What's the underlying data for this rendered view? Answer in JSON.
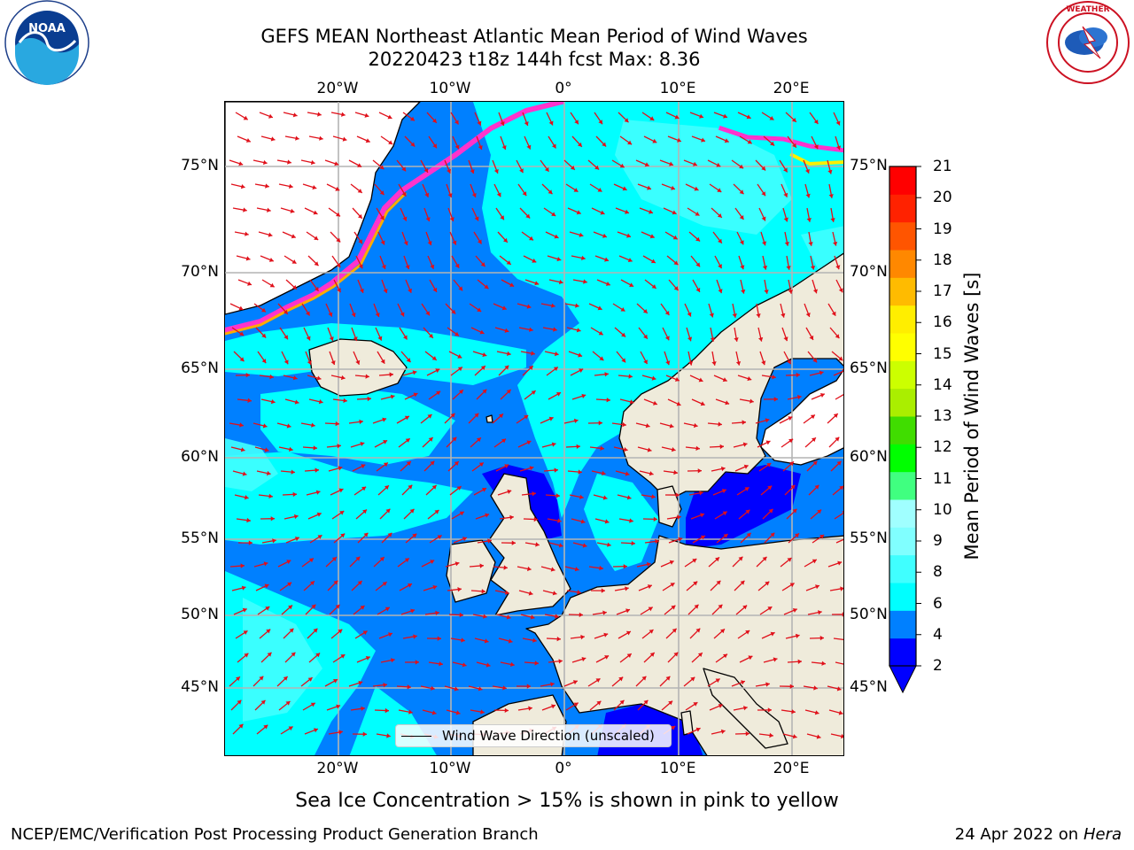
{
  "title": {
    "line1": "GEFS MEAN Northeast Atlantic Mean Period of Wind Waves",
    "line2": "20220423 t18z 144h fcst   Max: 8.36"
  },
  "logos": {
    "left": "NOAA",
    "right": "NATIONAL WEATHER SERVICE"
  },
  "map": {
    "lon_labels": [
      "20°W",
      "10°W",
      "0°",
      "10°E",
      "20°E"
    ],
    "lat_labels": [
      "75°N",
      "70°N",
      "65°N",
      "60°N",
      "55°N",
      "50°N",
      "45°N"
    ],
    "legend_label": "Wind Wave Direction (unscaled)",
    "colors": {
      "land": "#efebdb",
      "ice_region": "#ffffff",
      "ice_edge": [
        "#ff33cc",
        "#ffaa00",
        "#ffee00"
      ],
      "arrows": "#e0101a",
      "grid": "#b4b4b4",
      "coast": "#000000"
    }
  },
  "colorbar": {
    "label": "Mean Period of Wind Waves [s]",
    "ticks": [
      "21",
      "20",
      "19",
      "18",
      "17",
      "16",
      "15",
      "14",
      "13",
      "12",
      "11",
      "10",
      "9",
      "8",
      "6",
      "4",
      "2"
    ],
    "bands": [
      "#0000ff",
      "#0080ff",
      "#00ffff",
      "#40ffff",
      "#80ffff",
      "#a0ffff",
      "#40ff80",
      "#00ff00",
      "#40dd00",
      "#aaee00",
      "#ccff00",
      "#ffff00",
      "#ffee00",
      "#ffbb00",
      "#ff8800",
      "#ff5500",
      "#ff2200",
      "#ff0000"
    ]
  },
  "subtitle": "Sea Ice Concentration > 15% is shown in pink to yellow",
  "footer": {
    "left": "NCEP/EMC/Verification Post Processing Product Generation Branch",
    "right_date": "24 Apr 2022 on",
    "right_machine": "Hera"
  }
}
